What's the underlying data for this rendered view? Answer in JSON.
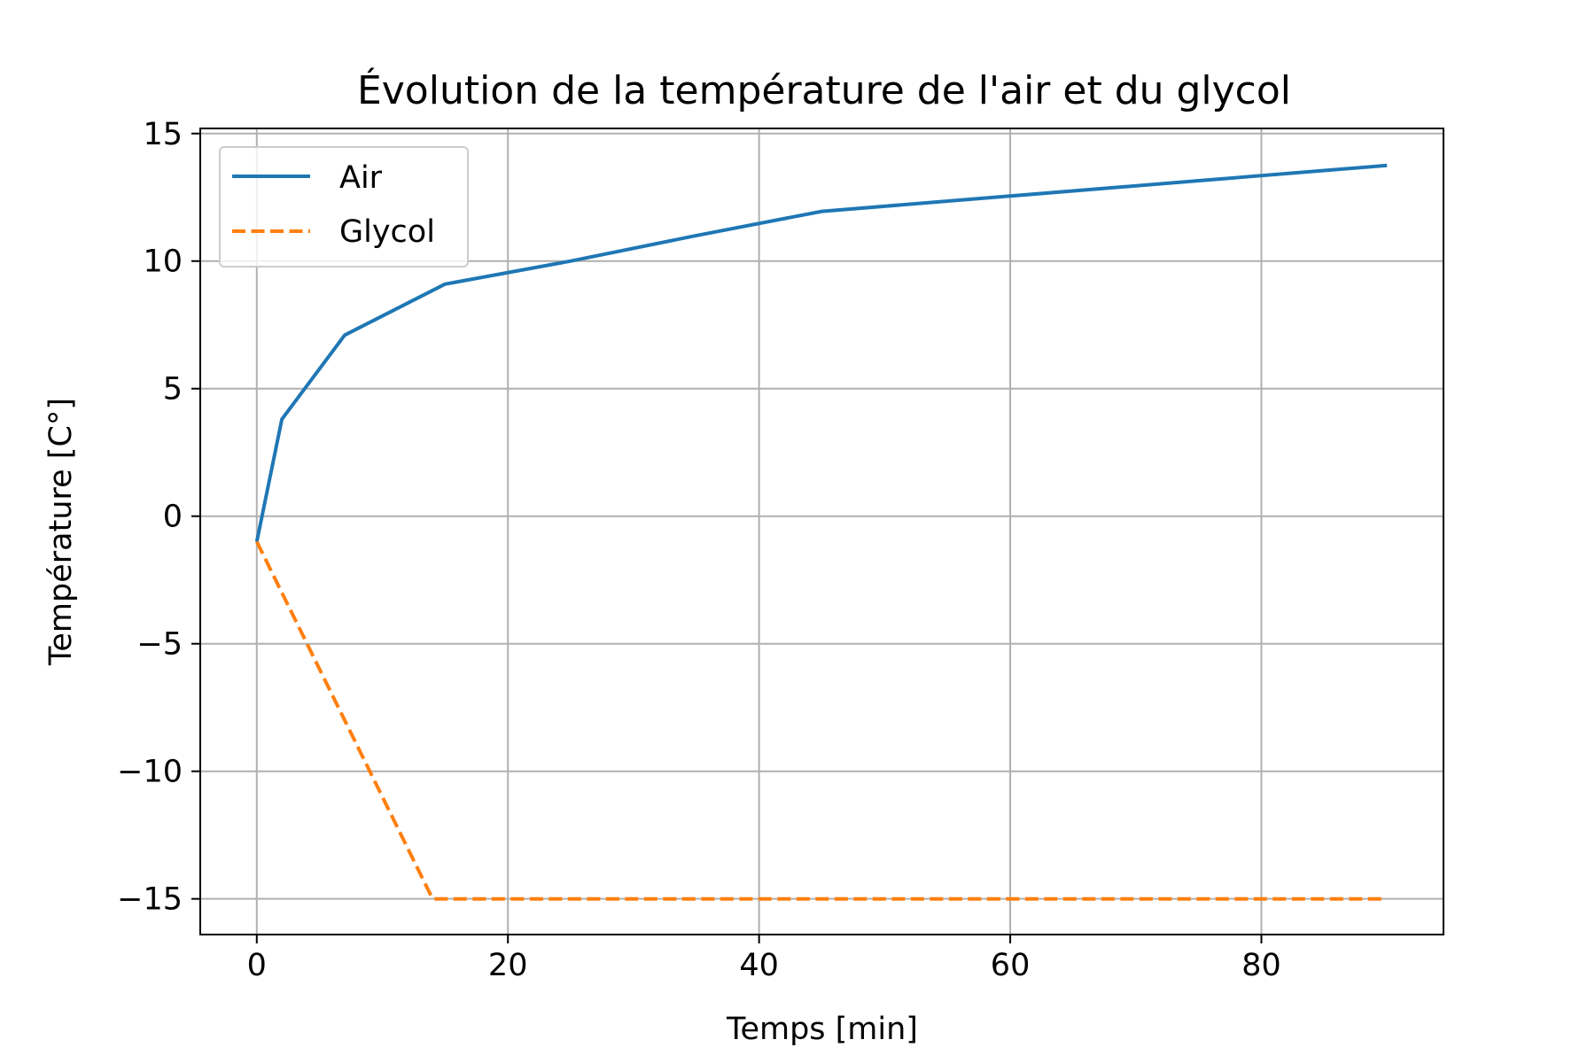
{
  "chart_data": {
    "type": "line",
    "title": "Évolution de la température de l'air et du glycol",
    "xlabel": "Temps [min]",
    "ylabel": "Température [C°]",
    "xlim": [
      -4.5,
      94.5
    ],
    "ylim": [
      -16.4,
      15.2
    ],
    "xticks": [
      0,
      20,
      40,
      60,
      80
    ],
    "yticks": [
      -15,
      -10,
      -5,
      0,
      5,
      10,
      15
    ],
    "xtick_labels": [
      "0",
      "20",
      "40",
      "60",
      "80"
    ],
    "ytick_labels": [
      "−15",
      "−10",
      "−5",
      "0",
      "5",
      "10",
      "15"
    ],
    "grid": true,
    "legend_position": "top-left",
    "series": [
      {
        "name": "Air",
        "color": "#1f77b4",
        "style": "solid",
        "x": [
          0,
          2,
          7,
          15,
          25,
          35,
          45,
          60,
          75,
          90
        ],
        "y": [
          -1,
          3.8,
          7.1,
          9.1,
          10.0,
          11.0,
          11.95,
          12.55,
          13.15,
          13.75
        ]
      },
      {
        "name": "Glycol",
        "color": "#ff7f0e",
        "style": "dashed",
        "x": [
          0,
          14,
          90
        ],
        "y": [
          -1,
          -15,
          -15
        ]
      }
    ]
  }
}
